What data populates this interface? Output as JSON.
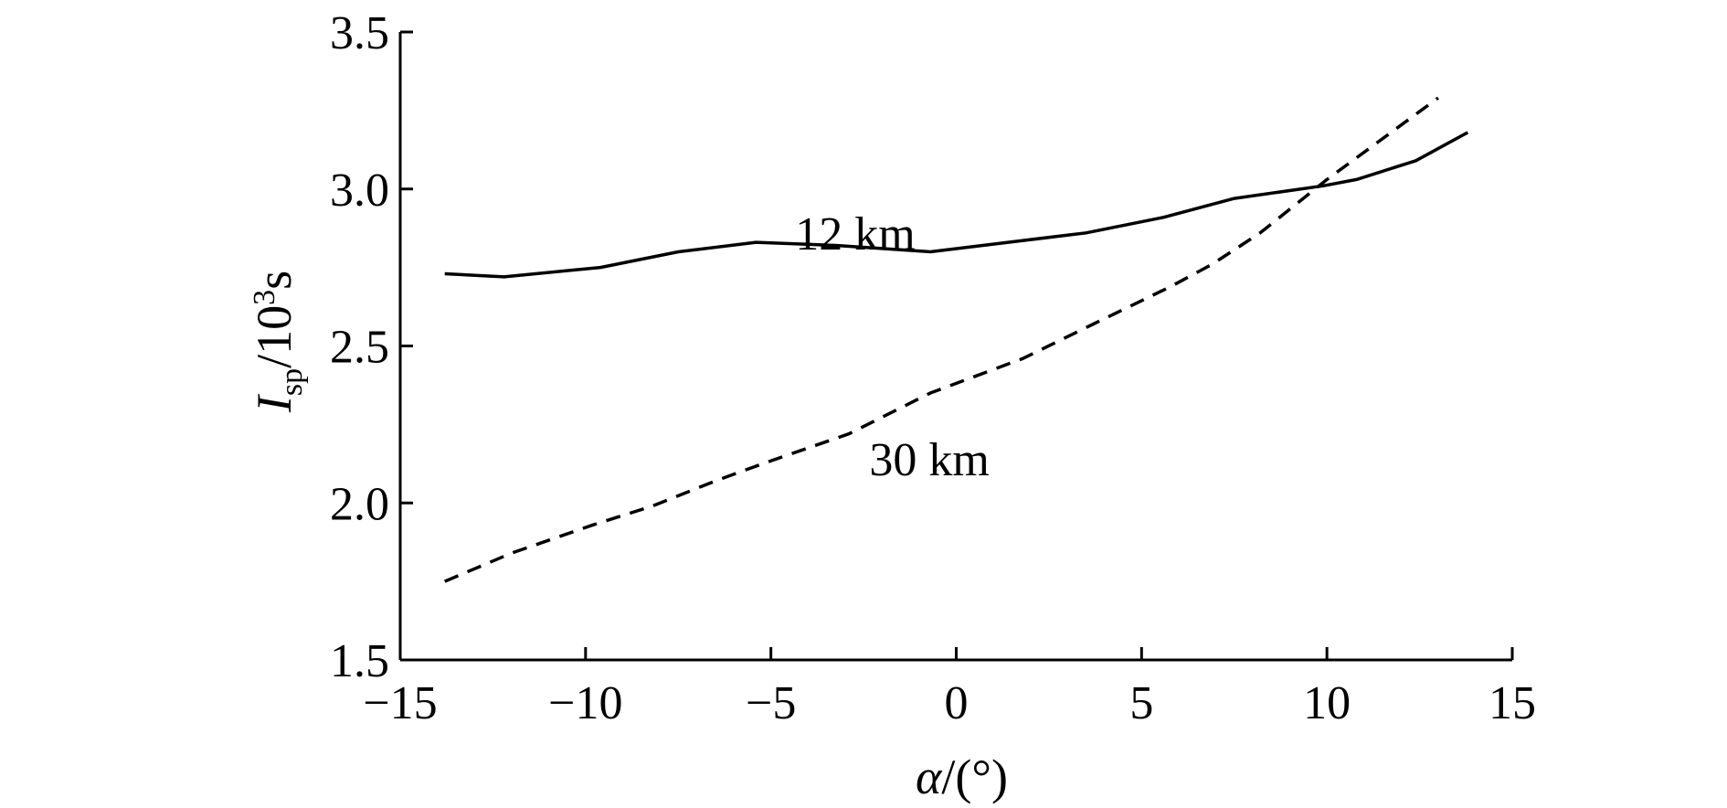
{
  "chart_data": {
    "type": "line",
    "xlabel_symbol": "α",
    "xlabel_unit": "/(°)",
    "ylabel_symbol": "I",
    "ylabel_subscript": "sp",
    "ylabel_unit_base": "/10",
    "ylabel_unit_exp": "3",
    "ylabel_unit_tail": "s",
    "xlim": [
      -15,
      15
    ],
    "ylim": [
      1.5,
      3.5
    ],
    "x_ticks": [
      -15,
      -10,
      -5,
      0,
      5,
      10,
      15
    ],
    "x_tick_labels": [
      "−15",
      "−10",
      "−5",
      "0",
      "5",
      "10",
      "15"
    ],
    "y_ticks": [
      1.5,
      2.0,
      2.5,
      3.0,
      3.5
    ],
    "y_tick_labels": [
      "1.5",
      "2.0",
      "2.5",
      "3.0",
      "3.5"
    ],
    "grid": false,
    "series": [
      {
        "name": "12 km",
        "line_style": "solid",
        "color": "#000000",
        "label_anchor": [
          -1,
          2.86
        ],
        "x": [
          -13.8,
          -12.2,
          -9.6,
          -7.5,
          -5.4,
          -3.2,
          -0.7,
          1.4,
          3.5,
          5.6,
          7.5,
          9.9,
          10.8,
          12.4,
          13.8
        ],
        "y": [
          2.73,
          2.72,
          2.75,
          2.8,
          2.83,
          2.82,
          2.8,
          2.83,
          2.86,
          2.91,
          2.97,
          3.01,
          3.03,
          3.09,
          3.18
        ]
      },
      {
        "name": "30 km",
        "line_style": "dashed",
        "color": "#000000",
        "label_anchor": [
          1,
          2.14
        ],
        "x": [
          -13.8,
          -12.0,
          -9.8,
          -8.2,
          -6.5,
          -5.1,
          -2.9,
          -0.7,
          1.8,
          3.7,
          5.8,
          6.9,
          8.2,
          10.0,
          13.0
        ],
        "y": [
          1.75,
          1.84,
          1.93,
          1.99,
          2.07,
          2.13,
          2.22,
          2.35,
          2.46,
          2.57,
          2.69,
          2.76,
          2.86,
          3.03,
          3.29
        ]
      }
    ]
  }
}
